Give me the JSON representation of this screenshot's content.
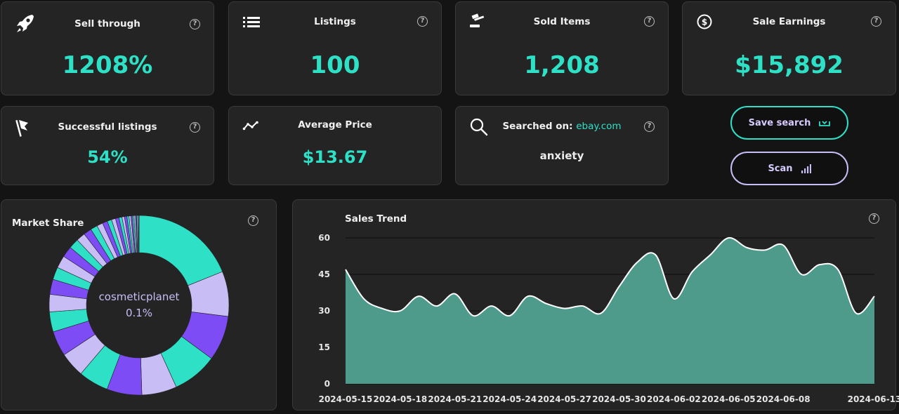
{
  "stats": {
    "sell_through": {
      "title": "Sell through",
      "value": "1208%",
      "icon": "rocket-icon"
    },
    "listings": {
      "title": "Listings",
      "value": "100",
      "icon": "list-icon"
    },
    "sold_items": {
      "title": "Sold Items",
      "value": "1,208",
      "icon": "gavel-icon"
    },
    "sale_earnings": {
      "title": "Sale Earnings",
      "value": "$15,892",
      "icon": "dollar-circle-icon"
    },
    "successful_listings": {
      "title": "Successful listings",
      "value": "54%",
      "icon": "flag-icon"
    },
    "average_price": {
      "title": "Average Price",
      "value": "$13.67",
      "icon": "trend-line-icon"
    },
    "searched_on": {
      "title": "Searched on:",
      "site": "ebay.com",
      "query": "anxiety",
      "icon": "search-icon"
    }
  },
  "help_symbol": "?",
  "buttons": {
    "save_search": {
      "label": "Save search",
      "icon": "inbox-download-icon"
    },
    "scan": {
      "label": "Scan",
      "icon": "signal-bars-icon"
    }
  },
  "market_share": {
    "title": "Market Share",
    "center_label": "cosmeticplanet",
    "center_value": "0.1%",
    "colors": [
      "#2de0c6",
      "#c8bdf5",
      "#7d4cf5"
    ]
  },
  "sales_trend": {
    "title": "Sales Trend"
  },
  "colors": {
    "accent": "#2de0c6",
    "lavender": "#c8bdf5",
    "purple": "#7d4cf5",
    "card_bg": "#242424",
    "page_bg": "#141414",
    "area_fill": "#4e9b8c"
  },
  "chart_data": [
    {
      "type": "pie",
      "title": "Market Share",
      "values": [
        21,
        9,
        9,
        9,
        7,
        7,
        6,
        5,
        5,
        4,
        3.5,
        3,
        2.5,
        2.5,
        2.2,
        2,
        1.8,
        1.6,
        1.4,
        1.2,
        1,
        0.9,
        0.8,
        0.7,
        0.6,
        0.5,
        0.5,
        0.4,
        0.4,
        0.3,
        0.3,
        0.3,
        0.2,
        0.2,
        0.2,
        0.1
      ]
    },
    {
      "type": "area",
      "title": "Sales Trend",
      "x": [
        "2024-05-15",
        "2024-05-16",
        "2024-05-17",
        "2024-05-18",
        "2024-05-19",
        "2024-05-20",
        "2024-05-21",
        "2024-05-22",
        "2024-05-23",
        "2024-05-24",
        "2024-05-25",
        "2024-05-26",
        "2024-05-27",
        "2024-05-28",
        "2024-05-29",
        "2024-05-30",
        "2024-05-31",
        "2024-06-01",
        "2024-06-02",
        "2024-06-03",
        "2024-06-04",
        "2024-06-05",
        "2024-06-06",
        "2024-06-07",
        "2024-06-08",
        "2024-06-09",
        "2024-06-10",
        "2024-06-11",
        "2024-06-12",
        "2024-06-13"
      ],
      "y": [
        47,
        35,
        31,
        30,
        36,
        32,
        37,
        28,
        32,
        28,
        36,
        33,
        31,
        32,
        29,
        40,
        50,
        53,
        35,
        46,
        53,
        60,
        56,
        55,
        57,
        45,
        49,
        47,
        29,
        36
      ],
      "x_tick_labels": [
        "2024-05-15",
        "2024-05-18",
        "2024-05-21",
        "2024-05-24",
        "2024-05-27",
        "2024-05-30",
        "2024-06-02",
        "2024-06-05",
        "2024-06-08",
        "2024-06-13"
      ],
      "y_ticks": [
        0,
        15,
        30,
        45,
        60
      ],
      "ylim": [
        0,
        60
      ],
      "grid": true
    }
  ]
}
